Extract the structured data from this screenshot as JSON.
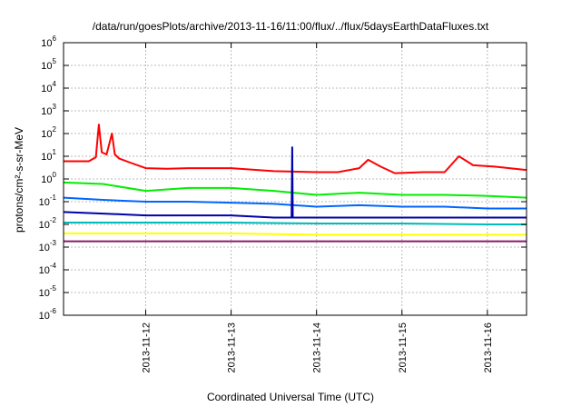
{
  "chart_data": {
    "type": "line",
    "title": "/data/run/goesPlots/archive/2013-11-16/11:00/flux/../flux/5daysEarthDataFluxes.txt",
    "xlabel": "Coordinated Universal Time (UTC)",
    "ylabel": "protons/cm²-s-sr-MeV",
    "yscale": "log",
    "ylim": [
      1e-06,
      1000000.0
    ],
    "xlim": [
      "2013-11-11T00:55",
      "2013-11-16T11:00"
    ],
    "grid": true,
    "x_ticks": [
      "2013-11-12",
      "2013-11-13",
      "2013-11-14",
      "2013-11-15",
      "2013-11-16"
    ],
    "y_ticks": [
      {
        "value": 1e-06,
        "mantissa": "10",
        "exp": "-6"
      },
      {
        "value": 1e-05,
        "mantissa": "10",
        "exp": "-5"
      },
      {
        "value": 0.0001,
        "mantissa": "10",
        "exp": "-4"
      },
      {
        "value": 0.001,
        "mantissa": "10",
        "exp": "-3"
      },
      {
        "value": 0.01,
        "mantissa": "10",
        "exp": "-2"
      },
      {
        "value": 0.1,
        "mantissa": "10",
        "exp": "-1"
      },
      {
        "value": 1,
        "mantissa": "10",
        "exp": "0"
      },
      {
        "value": 10,
        "mantissa": "10",
        "exp": "1"
      },
      {
        "value": 100,
        "mantissa": "10",
        "exp": "2"
      },
      {
        "value": 1000,
        "mantissa": "10",
        "exp": "3"
      },
      {
        "value": 10000,
        "mantissa": "10",
        "exp": "4"
      },
      {
        "value": 100000,
        "mantissa": "10",
        "exp": "5"
      },
      {
        "value": 1000000,
        "mantissa": "10",
        "exp": "6"
      }
    ],
    "series": [
      {
        "color": "#ff0000",
        "x": [
          "2013-11-11T01:00",
          "2013-11-11T08:00",
          "2013-11-11T10:00",
          "2013-11-11T10:50",
          "2013-11-11T11:40",
          "2013-11-11T13:00",
          "2013-11-11T14:30",
          "2013-11-11T15:20",
          "2013-11-11T16:30",
          "2013-11-11T20:00",
          "2013-11-12T00:00",
          "2013-11-12T06:00",
          "2013-11-12T12:00",
          "2013-11-13T00:00",
          "2013-11-13T12:00",
          "2013-11-14T00:00",
          "2013-11-14T06:00",
          "2013-11-14T12:00",
          "2013-11-14T14:30",
          "2013-11-14T18:00",
          "2013-11-14T22:00",
          "2013-11-15T06:00",
          "2013-11-15T12:00",
          "2013-11-15T16:00",
          "2013-11-15T20:00",
          "2013-11-16T02:00",
          "2013-11-16T11:00"
        ],
        "y": [
          6,
          6,
          9,
          250,
          15,
          12,
          100,
          12,
          8,
          5,
          3,
          2.8,
          3,
          3,
          2.2,
          2,
          2,
          3,
          7,
          3.5,
          1.8,
          2,
          2,
          10,
          4,
          3.5,
          2.5
        ]
      },
      {
        "color": "#00ee00",
        "x": [
          "2013-11-11T01:00",
          "2013-11-11T12:00",
          "2013-11-12T00:00",
          "2013-11-12T12:00",
          "2013-11-13T00:00",
          "2013-11-13T12:00",
          "2013-11-14T00:00",
          "2013-11-14T12:00",
          "2013-11-15T00:00",
          "2013-11-15T12:00",
          "2013-11-16T00:00",
          "2013-11-16T11:00"
        ],
        "y": [
          0.7,
          0.6,
          0.3,
          0.4,
          0.4,
          0.3,
          0.2,
          0.25,
          0.2,
          0.2,
          0.18,
          0.15
        ]
      },
      {
        "color": "#0066ff",
        "x": [
          "2013-11-11T01:00",
          "2013-11-11T12:00",
          "2013-11-12T00:00",
          "2013-11-12T12:00",
          "2013-11-13T00:00",
          "2013-11-13T12:00",
          "2013-11-14T00:00",
          "2013-11-14T12:00",
          "2013-11-15T00:00",
          "2013-11-15T12:00",
          "2013-11-16T00:00",
          "2013-11-16T11:00"
        ],
        "y": [
          0.15,
          0.12,
          0.1,
          0.1,
          0.09,
          0.08,
          0.06,
          0.07,
          0.06,
          0.06,
          0.05,
          0.05
        ]
      },
      {
        "color": "#0000aa",
        "x": [
          "2013-11-11T01:00",
          "2013-11-11T12:00",
          "2013-11-12T00:00",
          "2013-11-12T12:00",
          "2013-11-13T00:00",
          "2013-11-13T12:00",
          "2013-11-13T17:00",
          "2013-11-13T17:10",
          "2013-11-13T17:20",
          "2013-11-14T00:00",
          "2013-11-14T12:00",
          "2013-11-15T00:00",
          "2013-11-15T12:00",
          "2013-11-16T00:00",
          "2013-11-16T11:00"
        ],
        "y": [
          0.035,
          0.03,
          0.025,
          0.025,
          0.025,
          0.02,
          0.02,
          25,
          0.02,
          0.02,
          0.02,
          0.02,
          0.02,
          0.02,
          0.02
        ]
      },
      {
        "color": "#00bbbb",
        "x": [
          "2013-11-11T01:00",
          "2013-11-12T00:00",
          "2013-11-13T00:00",
          "2013-11-14T00:00",
          "2013-11-15T00:00",
          "2013-11-16T00:00",
          "2013-11-16T11:00"
        ],
        "y": [
          0.012,
          0.012,
          0.012,
          0.011,
          0.011,
          0.01,
          0.01
        ]
      },
      {
        "color": "#ffff00",
        "x": [
          "2013-11-11T01:00",
          "2013-11-12T00:00",
          "2013-11-13T00:00",
          "2013-11-14T00:00",
          "2013-11-15T00:00",
          "2013-11-16T00:00",
          "2013-11-16T11:00"
        ],
        "y": [
          0.004,
          0.004,
          0.004,
          0.0035,
          0.0035,
          0.0035,
          0.0035
        ]
      },
      {
        "color": "#8b1a6b",
        "x": [
          "2013-11-11T01:00",
          "2013-11-12T00:00",
          "2013-11-13T00:00",
          "2013-11-14T00:00",
          "2013-11-15T00:00",
          "2013-11-16T00:00",
          "2013-11-16T11:00"
        ],
        "y": [
          0.0018,
          0.0018,
          0.0018,
          0.0018,
          0.0018,
          0.0018,
          0.0018
        ]
      }
    ]
  }
}
